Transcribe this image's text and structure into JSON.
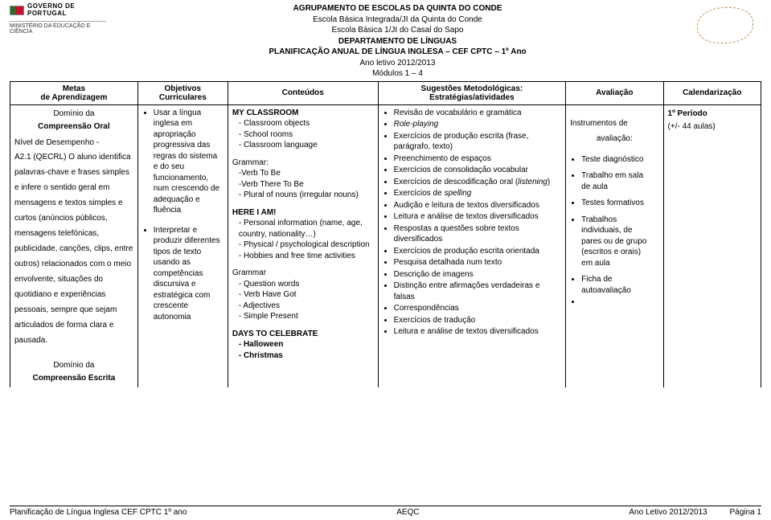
{
  "header": {
    "gov": "GOVERNO DE",
    "country": "PORTUGAL",
    "ministry": "MINISTÉRIO DA EDUCAÇÃO E CIÊNCIA",
    "line1": "AGRUPAMENTO DE ESCOLAS DA QUINTA DO CONDE",
    "line2": "Escola Básica Integrada/JI da Quinta do Conde",
    "line3": "Escola Básica 1/JI do Casal do Sapo",
    "line4": "DEPARTAMENTO DE LÍNGUAS",
    "line5": "PLANIFICAÇÃO ANUAL DE LÍNGUA INGLESA – CEF CPTC – 1º Ano",
    "line6": "Ano letivo 2012/2013",
    "line7": "Módulos 1 – 4"
  },
  "columns": {
    "metas1": "Metas",
    "metas2": "de Aprendizagem",
    "obj1": "Objetivos",
    "obj2": "Curriculares",
    "cont": "Conteúdos",
    "sug1": "Sugestões Metodológicas:",
    "sug2": "Estratégias/atividades",
    "aval": "Avaliação",
    "cal": "Calendarização"
  },
  "metas": {
    "dominio1": "Domínio da",
    "comp_oral": "Compreensão Oral",
    "nivel": "Nível de Desempenho -",
    "body": "A2.1 (QECRL) O aluno identifica palavras-chave e frases simples e infere o sentido geral em mensagens e textos simples e curtos (anúncios públicos, mensagens telefónicas, publicidade, canções, clips, entre outros) relacionados com o meio envolvente, situações do quotidiano e experiências pessoais, sempre que sejam articulados de forma clara e pausada.",
    "dominio2": "Domínio da",
    "comp_escrita": "Compreensão Escrita"
  },
  "objetivos": {
    "b1": "Usar a língua inglesa em apropriação progressiva das regras do sistema e do seu funcionamento, num crescendo de adequação e fluência",
    "b2": "Interpretar e produzir diferentes tipos de texto usando as competências discursiva e estratégica com crescente autonomia"
  },
  "conteudos": {
    "t1": "MY CLASSROOM",
    "t1a": "- Classroom objects",
    "t1b": "- School rooms",
    "t1c": "- Classroom language",
    "g1": "Grammar:",
    "g1a": "-Verb To Be",
    "g1b": "-Verb There To Be",
    "g1c": "- Plural of nouns (irregular nouns)",
    "t2": "HERE I AM!",
    "t2a": "- Personal information (name, age, country, nationality…)",
    "t2b": "- Physical / psychological description",
    "t2c": "- Hobbies and free time activities",
    "g2": "Grammar",
    "g2a": "- Question words",
    "g2b": "- Verb Have Got",
    "g2c": "- Adjectives",
    "g2d": "- Simple Present",
    "t3": "DAYS TO CELEBRATE",
    "t3a": "- Halloween",
    "t3b": "- Christmas"
  },
  "sugestoes": [
    "Revisão de vocabulário e gramática",
    "Role-playing",
    "Exercícios de produção escrita (frase, parágrafo, texto)",
    "Preenchimento de espaços",
    "Exercícios de consolidação vocabular",
    "Exercícios de descodificação oral (listening)",
    "Exercícios de spelling",
    "Audição e leitura de textos diversificados",
    "Leitura e análise de textos diversificados",
    "Respostas a questões sobre textos diversificados",
    "Exercícios de produção escrita orientada",
    "Pesquisa detalhada num texto",
    "Descrição de imagens",
    "Distinção entre afirmações verdadeiras e falsas",
    "Correspondências",
    "Exercícios de tradução",
    "Leitura e análise de textos diversificados"
  ],
  "avaliacao": {
    "l1": "Instrumentos de",
    "l2": "avaliação:",
    "i1": "Teste diagnóstico",
    "i2a": "Trabalho  em  sala",
    "i2b": "de aula",
    "i3": "Testes formativos",
    "i4a": "Trabalhos",
    "i4b": "individuais,      de",
    "i4c": "pares ou de grupo",
    "i4d": "(escritos  e  orais)",
    "i4e": "em aula",
    "i5a": "Ficha            de",
    "i5b": "autoavaliação"
  },
  "calend": {
    "periodo": "1º Período",
    "aulas": "(+/-  44 aulas)"
  },
  "footer": {
    "left": "Planificação de Língua Inglesa CEF CPTC 1º ano",
    "center": "AEQC",
    "right": "Ano Letivo 2012/2013",
    "page": "Página 1"
  }
}
